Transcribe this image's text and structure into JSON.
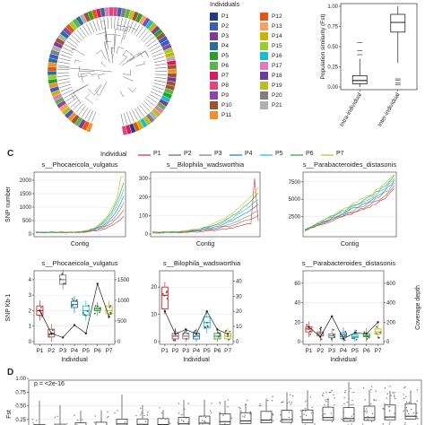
{
  "panels": {
    "c": "C",
    "d": "D"
  },
  "tree_legend": {
    "title": "Individuals",
    "items": [
      {
        "label": "P1",
        "color": "#1f3a8a"
      },
      {
        "label": "P2",
        "color": "#3b5bbf"
      },
      {
        "label": "P3",
        "color": "#7d3c98"
      },
      {
        "label": "P4",
        "color": "#2a6f97"
      },
      {
        "label": "P5",
        "color": "#2ca02c"
      },
      {
        "label": "P6",
        "color": "#5ab34f"
      },
      {
        "label": "P7",
        "color": "#d81b60"
      },
      {
        "label": "P8",
        "color": "#e0457b"
      },
      {
        "label": "P9",
        "color": "#8e44ad"
      },
      {
        "label": "P10",
        "color": "#a0522d"
      },
      {
        "label": "P11",
        "color": "#f28e2b"
      },
      {
        "label": "P12",
        "color": "#e6550d"
      },
      {
        "label": "P13",
        "color": "#f4a261"
      },
      {
        "label": "P14",
        "color": "#c9b400"
      },
      {
        "label": "P15",
        "color": "#9acd32"
      },
      {
        "label": "P16",
        "color": "#17becf"
      },
      {
        "label": "P17",
        "color": "#e377c2"
      },
      {
        "label": "P18",
        "color": "#6a3d9a"
      },
      {
        "label": "P19",
        "color": "#bcbd22"
      },
      {
        "label": "P20",
        "color": "#7f7f7f"
      },
      {
        "label": "P21",
        "color": "#b0b0b0"
      }
    ]
  },
  "individual_legend": {
    "title": "Individual",
    "items": [
      {
        "label": "P1",
        "color": "#d62728"
      },
      {
        "label": "P2",
        "color": "#8c564b"
      },
      {
        "label": "P3",
        "color": "#7f7f7f"
      },
      {
        "label": "P4",
        "color": "#1f77b4"
      },
      {
        "label": "P5",
        "color": "#17becf"
      },
      {
        "label": "P6",
        "color": "#2ca02c"
      },
      {
        "label": "P7",
        "color": "#bcbd22"
      }
    ]
  },
  "chart_data": [
    {
      "type": "box",
      "id": "fst-boxplot",
      "ylabel": "Population similarity (Fst)",
      "categories": [
        "Intra-individual",
        "Inter-individual"
      ],
      "ylim": [
        0,
        1
      ],
      "yticks": [
        "0.00",
        "0.25",
        "0.50",
        "0.75",
        "1.00"
      ],
      "boxes": [
        {
          "min": 0.0,
          "q1": 0.04,
          "median": 0.08,
          "q3": 0.14,
          "max": 0.35,
          "outliers": [
            0.4,
            0.45,
            0.55
          ]
        },
        {
          "min": 0.3,
          "q1": 0.68,
          "median": 0.8,
          "q3": 0.9,
          "max": 1.0,
          "outliers": [
            0.03,
            0.05,
            0.08,
            0.1
          ]
        }
      ]
    },
    {
      "type": "line",
      "id": "snp-lines",
      "xlabel": "Contig",
      "ylabel": "SNP number",
      "facets": [
        {
          "title": "s__Phocaeicola_vulgatus",
          "yticks": [
            "0",
            "500",
            "1000",
            "1500",
            "2000"
          ],
          "ylim": [
            0,
            2200
          ]
        },
        {
          "title": "s__Bilophila_wadsworthia",
          "yticks": [
            "0",
            "100",
            "200",
            "300"
          ],
          "ylim": [
            0,
            320
          ]
        },
        {
          "title": "s__Parabacteroides_distasonis",
          "yticks": [
            "2500",
            "5000",
            "7500"
          ],
          "ylim": [
            0,
            8500
          ]
        }
      ]
    },
    {
      "type": "box",
      "id": "snp-kb-boxplots",
      "xlabel": "Individual",
      "ylabel": "SNP Kb-1",
      "ylabel_right": "Coverage depth",
      "categories": [
        "P1",
        "P2",
        "P3",
        "P4",
        "P5",
        "P6",
        "P7"
      ],
      "facets": [
        {
          "title": "s__Phocaeicola_vulgatus",
          "yticks": [
            "0",
            "1",
            "2",
            "3",
            "4"
          ],
          "ylim": [
            0,
            4.4
          ],
          "yticks_right": [
            "0",
            "500",
            "1000",
            "1500"
          ],
          "ylim_right": [
            0,
            1650
          ],
          "medians": [
            2.0,
            0.5,
            4.0,
            2.4,
            2.0,
            2.1,
            2.0
          ],
          "q1": [
            1.7,
            0.3,
            3.7,
            2.2,
            1.7,
            2.0,
            1.8
          ],
          "q3": [
            2.3,
            0.8,
            4.3,
            2.6,
            2.3,
            2.2,
            2.3
          ],
          "coverage": [
            750,
            200,
            100,
            400,
            200,
            1400,
            600
          ]
        },
        {
          "title": "s__Bilophila_wadsworthia",
          "yticks": [
            "0",
            "10",
            "20"
          ],
          "ylim": [
            0,
            25
          ],
          "yticks_right": [
            "0",
            "10",
            "20",
            "30",
            "40"
          ],
          "ylim_right": [
            0,
            45
          ],
          "medians": [
            17,
            2,
            2,
            2,
            7,
            2,
            2
          ],
          "q1": [
            12,
            1,
            1,
            1,
            5,
            1,
            1
          ],
          "q3": [
            20,
            3,
            3,
            3,
            9,
            3,
            3
          ],
          "coverage": [
            20,
            5,
            8,
            5,
            20,
            8,
            5
          ]
        },
        {
          "title": "s__Parabacteroides_distasonis",
          "yticks": [
            "0",
            "20",
            "40",
            "60"
          ],
          "ylim": [
            0,
            70
          ],
          "yticks_right": [
            "0",
            "200",
            "400",
            "600"
          ],
          "ylim_right": [
            0,
            700
          ],
          "medians": [
            13,
            8,
            6,
            7,
            5,
            6,
            10
          ],
          "q1": [
            10,
            6,
            4,
            5,
            4,
            5,
            8
          ],
          "q3": [
            15,
            10,
            8,
            9,
            7,
            8,
            13
          ],
          "coverage": [
            150,
            50,
            260,
            30,
            90,
            80,
            200
          ]
        }
      ]
    },
    {
      "type": "box",
      "id": "fst-contigs",
      "ylabel": "Fst",
      "annotation": "p = <2e-16",
      "yticks": [
        "0.25",
        "0.50",
        "0.75",
        "1.00"
      ],
      "ylim": [
        0,
        1.05
      ],
      "n_boxes": 19
    }
  ]
}
